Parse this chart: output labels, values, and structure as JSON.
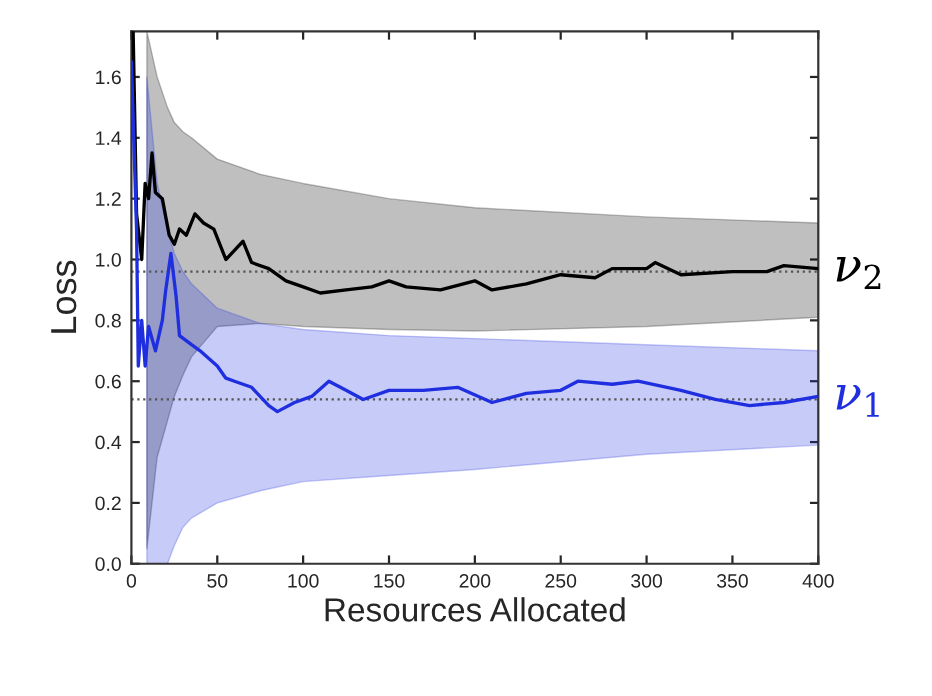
{
  "chart_data": {
    "type": "line",
    "xlabel": "Resources Allocated",
    "ylabel": "Loss",
    "x": [
      0,
      1,
      3,
      4,
      5,
      6,
      8,
      9,
      10,
      12,
      14,
      15,
      18,
      20,
      21,
      22,
      23,
      25,
      26,
      28,
      30,
      32,
      35,
      37,
      40,
      42,
      48,
      50,
      55,
      60,
      65,
      70,
      75,
      80,
      85,
      90,
      95,
      100,
      105,
      110,
      115,
      125,
      135,
      140,
      150,
      160,
      170,
      180,
      190,
      200,
      210,
      230,
      250,
      260,
      270,
      280,
      295,
      300,
      305,
      320,
      340,
      350,
      360,
      370,
      380,
      400
    ],
    "series": [
      {
        "name": "ν$_{2}$",
        "color": "#000000",
        "values": [
          null,
          1.75,
          1.15,
          null,
          1.05,
          1.0,
          1.25,
          null,
          1.2,
          1.35,
          1.22,
          null,
          1.2,
          null,
          null,
          1.08,
          null,
          1.05,
          null,
          1.1,
          null,
          1.08,
          null,
          1.15,
          null,
          1.12,
          1.1,
          null,
          1.0,
          1.03,
          1.06,
          0.99,
          null,
          0.97,
          null,
          0.93,
          null,
          0.91,
          null,
          0.89,
          null,
          0.9,
          null,
          0.91,
          0.93,
          0.91,
          null,
          0.9,
          null,
          0.93,
          0.9,
          0.92,
          0.95,
          null,
          0.94,
          0.97,
          null,
          0.97,
          0.99,
          0.95,
          null,
          0.96,
          null,
          0.96,
          0.98,
          0.97
        ],
        "lower": [
          null,
          null,
          null,
          null,
          null,
          null,
          null,
          0.05,
          null,
          null,
          null,
          0.35,
          null,
          null,
          0.47,
          null,
          null,
          0.55,
          null,
          null,
          0.62,
          null,
          0.68,
          null,
          null,
          null,
          null,
          0.78,
          null,
          null,
          null,
          null,
          0.79,
          null,
          null,
          null,
          null,
          0.78,
          null,
          null,
          null,
          null,
          null,
          null,
          0.77,
          null,
          null,
          null,
          null,
          0.765,
          null,
          null,
          null,
          null,
          null,
          null,
          null,
          0.78,
          null,
          null,
          null,
          null,
          null,
          null,
          null,
          0.81
        ],
        "upper": [
          null,
          null,
          null,
          null,
          null,
          null,
          null,
          1.75,
          null,
          null,
          null,
          1.6,
          null,
          null,
          1.5,
          null,
          null,
          1.45,
          null,
          null,
          1.42,
          null,
          1.4,
          null,
          null,
          null,
          null,
          1.33,
          null,
          null,
          null,
          null,
          1.28,
          null,
          null,
          null,
          null,
          1.25,
          null,
          null,
          null,
          null,
          null,
          null,
          1.2,
          null,
          null,
          null,
          null,
          1.17,
          null,
          null,
          null,
          null,
          null,
          null,
          null,
          1.14,
          null,
          null,
          null,
          null,
          null,
          null,
          null,
          1.12
        ]
      },
      {
        "name": "ν$_{1}$",
        "color": "#1f2fe0",
        "values": [
          1.65,
          null,
          1.1,
          0.65,
          null,
          0.8,
          0.65,
          null,
          0.78,
          null,
          0.7,
          null,
          0.8,
          0.9,
          null,
          null,
          1.02,
          null,
          0.88,
          0.75,
          null,
          null,
          0.72,
          null,
          0.7,
          null,
          null,
          0.65,
          0.61,
          0.6,
          null,
          0.58,
          null,
          0.52,
          0.5,
          null,
          0.53,
          null,
          0.55,
          null,
          0.6,
          0.57,
          0.54,
          null,
          0.57,
          null,
          0.57,
          null,
          0.58,
          null,
          0.53,
          0.56,
          0.57,
          0.6,
          null,
          0.59,
          0.6,
          null,
          null,
          0.57,
          0.54,
          null,
          0.52,
          null,
          0.53,
          0.55
        ],
        "lower": [
          null,
          null,
          null,
          null,
          null,
          null,
          null,
          0.0,
          null,
          null,
          null,
          0.0,
          null,
          null,
          0.0,
          null,
          null,
          0.06,
          null,
          null,
          0.12,
          null,
          0.15,
          null,
          null,
          null,
          null,
          0.2,
          null,
          null,
          null,
          null,
          0.24,
          null,
          null,
          null,
          null,
          0.27,
          null,
          null,
          null,
          null,
          null,
          null,
          0.29,
          null,
          null,
          null,
          null,
          0.31,
          null,
          null,
          null,
          null,
          null,
          null,
          null,
          0.36,
          null,
          null,
          null,
          null,
          null,
          null,
          null,
          0.39
        ],
        "upper": [
          null,
          null,
          null,
          null,
          null,
          null,
          null,
          1.6,
          null,
          null,
          null,
          1.25,
          null,
          null,
          1.1,
          null,
          null,
          1.02,
          null,
          null,
          0.96,
          null,
          0.92,
          null,
          null,
          null,
          null,
          0.84,
          null,
          null,
          null,
          null,
          0.79,
          null,
          null,
          null,
          null,
          0.77,
          null,
          null,
          null,
          null,
          null,
          null,
          0.75,
          null,
          null,
          null,
          null,
          0.74,
          null,
          null,
          null,
          null,
          null,
          null,
          null,
          0.72,
          null,
          null,
          null,
          null,
          null,
          null,
          null,
          0.7
        ]
      }
    ],
    "ref_lines": [
      {
        "axis": "y",
        "value": 0.96,
        "color": "#555555",
        "line_style": "dotted"
      },
      {
        "axis": "y",
        "value": 0.54,
        "color": "#555555",
        "line_style": "dotted"
      }
    ],
    "xlim": [
      0,
      400
    ],
    "xticks": [
      0,
      50,
      100,
      150,
      200,
      250,
      300,
      350,
      400
    ],
    "ylim": [
      0,
      1.75
    ],
    "yticks": [
      {
        "value": 0,
        "label": "0.0"
      },
      {
        "value": 0.2,
        "label": "0.2"
      },
      {
        "value": 0.4,
        "label": "0.4"
      },
      {
        "value": 0.6,
        "label": "0.6"
      },
      {
        "value": 0.8,
        "label": "0.8"
      },
      {
        "value": 1,
        "label": "1.0"
      },
      {
        "value": 1.2,
        "label": "1.2"
      },
      {
        "value": 1.4,
        "label": "1.4"
      },
      {
        "value": 1.6,
        "label": "1.6"
      }
    ],
    "grid": false,
    "legend": false,
    "line_style": "solid",
    "marker": "none"
  }
}
